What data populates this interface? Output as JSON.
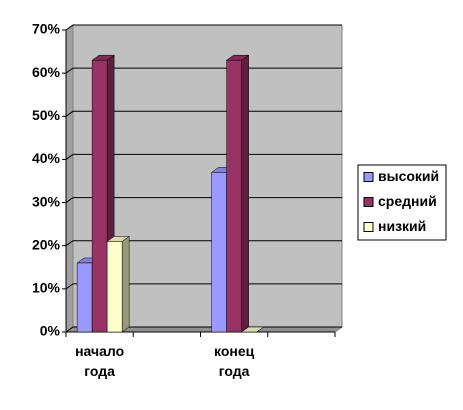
{
  "chart_data": {
    "type": "bar3d",
    "categories": [
      "начало года",
      null,
      "конец года",
      null
    ],
    "series": [
      {
        "name": "высокий",
        "color": "#9999ff",
        "values": [
          16,
          null,
          37,
          null
        ]
      },
      {
        "name": "средний",
        "color": "#993366",
        "values": [
          63,
          null,
          63,
          null
        ]
      },
      {
        "name": "низкий",
        "color": "#ffffcc",
        "values": [
          21,
          null,
          0,
          null
        ]
      }
    ],
    "ylim": [
      0,
      70
    ],
    "yticks": [
      {
        "value": 0,
        "label": "0%"
      },
      {
        "value": 10,
        "label": "10%"
      },
      {
        "value": 20,
        "label": "20%"
      },
      {
        "value": 30,
        "label": "30%"
      },
      {
        "value": 40,
        "label": "40%"
      },
      {
        "value": 50,
        "label": "50%"
      },
      {
        "value": 60,
        "label": "60%"
      },
      {
        "value": 70,
        "label": "70%"
      }
    ],
    "grid": true,
    "legend": "right"
  }
}
